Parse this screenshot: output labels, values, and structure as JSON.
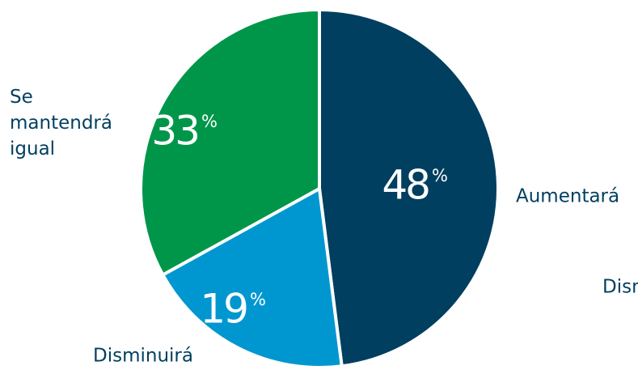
{
  "chart_data": {
    "type": "pie",
    "categories": [
      "Aumentará",
      "Disminuirá",
      "Se mantendrá igual"
    ],
    "values": [
      48,
      19,
      33
    ],
    "unit": "%",
    "colors": [
      "#003f5f",
      "#0097d0",
      "#00964a"
    ],
    "annotations": [
      "Disminuirá"
    ]
  }
}
